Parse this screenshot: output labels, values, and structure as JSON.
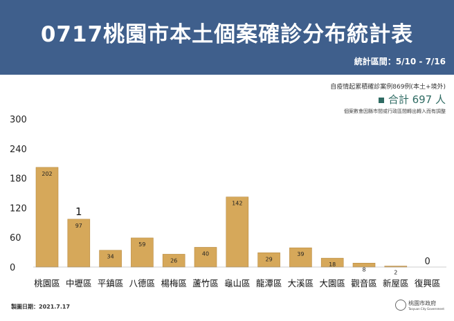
{
  "header": {
    "title": "0717桃園市本土個案確診分布統計表",
    "range": "統計區間：5/10 - 7/16"
  },
  "notes": {
    "cumulative": "自疫情起累積確診案例869例(本土+境外)",
    "total": "合計 697 人",
    "adjust": "個案數會因縣市間或行政區間轉出轉入而有調整"
  },
  "footer": {
    "date": "製圖日期：2021.7.17",
    "logo": "桃園市政府",
    "logo_en": "Taoyuan City Government"
  },
  "colors": {
    "header": "#3f5f8c",
    "bar": "#d6a85a",
    "total": "#2f6b63"
  },
  "chart_data": {
    "type": "bar",
    "categories": [
      "桃園區",
      "中壢區",
      "平鎮區",
      "八德區",
      "楊梅區",
      "蘆竹區",
      "龜山區",
      "龍潭區",
      "大溪區",
      "大園區",
      "觀音區",
      "新屋區",
      "復興區"
    ],
    "values": [
      202,
      97,
      34,
      59,
      26,
      40,
      142,
      29,
      39,
      18,
      8,
      2,
      0
    ],
    "ylim": [
      0,
      300
    ],
    "yticks": [
      0,
      60,
      120,
      180,
      240,
      300
    ],
    "grid": false,
    "annotations": [
      {
        "category": "中壢區",
        "text": "1"
      }
    ]
  }
}
